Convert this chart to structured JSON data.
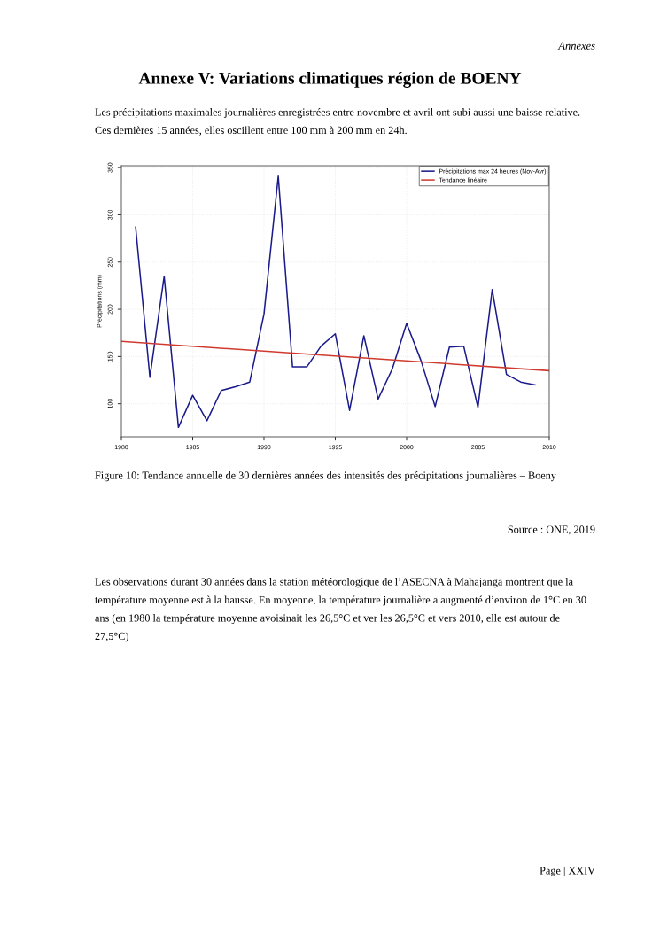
{
  "chart_data": {
    "type": "line",
    "title": "Annexe V: Variations climatiques région de BOENY",
    "subtitle": "Les précipitations maximales journalières enregistrées entre novembre et avril ont subi aussi une baisse relative. Ces dernières 15 années, elles oscillent entre 100 mm à 200 mm en 24h.",
    "ylabel": "Précipitations (mm)",
    "xlim": [
      1980,
      2010
    ],
    "xticks": [
      1980,
      1985,
      1990,
      1995,
      2000,
      2005,
      2010
    ],
    "ylim": [
      65,
      352
    ],
    "yticks": [
      100,
      150,
      200,
      250,
      300,
      350
    ],
    "grid": true,
    "legend": "top right",
    "marker": "none",
    "line_style": "solid",
    "series": [
      {
        "name": "Précipitations max 24 heures (Nov-Avr)",
        "color": "#1a1a8c",
        "x": [
          1981,
          1982,
          1983,
          1984,
          1985,
          1986,
          1987,
          1988,
          1989,
          1990,
          1991,
          1992,
          1993,
          1994,
          1995,
          1996,
          1997,
          1998,
          1999,
          2000,
          2001,
          2002,
          2003,
          2004,
          2005,
          2006,
          2007,
          2008,
          2009
        ],
        "values": [
          287,
          128,
          235,
          75,
          109,
          82,
          114,
          118,
          123,
          195,
          341,
          139,
          139,
          161,
          174,
          93,
          172,
          105,
          137,
          185,
          146,
          97,
          160,
          161,
          96,
          221,
          131,
          123,
          120
        ]
      },
      {
        "name": "Tendance linéaire",
        "color": "#d03a2e",
        "x": [
          1980,
          2010
        ],
        "values": [
          166,
          135
        ]
      }
    ],
    "annotations": [
      "Annexes",
      "Figure 10: Tendance annuelle de 30 dernières années des intensités des précipitations journalières – Boeny",
      "Source : ONE, 2019",
      "Les observations durant 30 années dans la station météorologique de l’ASECNA à Mahajanga montrent que la température moyenne est à la hausse. En moyenne, la température journalière a augmenté d’environ de 1°C en 30 ans (en 1980 la température moyenne avoisinait les 26,5°C et ver les 26,5°C et vers 2010, elle est autour de 27,5°C)",
      "Page | XXIV"
    ]
  }
}
